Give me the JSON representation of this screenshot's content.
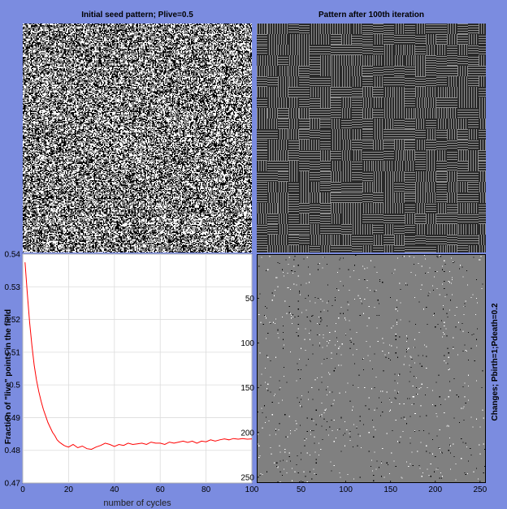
{
  "panels": {
    "seed": {
      "title": "Initial seed pattern; Plive=0.5",
      "grid_size": 256,
      "p_live": 0.5
    },
    "iteration": {
      "title": "Pattern after 100th iteration"
    },
    "changes": {
      "ylabel": "Changes; Pbirth=1;Pdeath=0.2"
    }
  },
  "chart_data": {
    "type": "line",
    "xlabel": "number of cycles",
    "ylabel": "Fraction of \"live\" points in the field",
    "xlim": [
      0,
      100
    ],
    "ylim": [
      0.47,
      0.54
    ],
    "xticks": [
      "0",
      "20",
      "40",
      "60",
      "80",
      "100"
    ],
    "yticks": [
      "0.47",
      "0.48",
      "0.49",
      "0.5",
      "0.51",
      "0.52",
      "0.53",
      "0.54"
    ],
    "grid": true,
    "series": [
      {
        "color": "#ff0000",
        "x": [
          1,
          2,
          3,
          4,
          5,
          6,
          7,
          8,
          9,
          10,
          11,
          12,
          13,
          14,
          15,
          16,
          17,
          18,
          19,
          20,
          22,
          24,
          26,
          28,
          30,
          32,
          34,
          36,
          38,
          40,
          42,
          44,
          46,
          48,
          50,
          52,
          54,
          56,
          58,
          60,
          62,
          64,
          66,
          68,
          70,
          72,
          74,
          76,
          78,
          80,
          82,
          84,
          86,
          88,
          90,
          92,
          94,
          96,
          98,
          100
        ],
        "y": [
          0.5375,
          0.528,
          0.519,
          0.512,
          0.506,
          0.5015,
          0.498,
          0.495,
          0.4925,
          0.4905,
          0.4885,
          0.487,
          0.4855,
          0.4845,
          0.4832,
          0.4825,
          0.482,
          0.4815,
          0.4812,
          0.481,
          0.4818,
          0.4808,
          0.4813,
          0.4805,
          0.4803,
          0.481,
          0.4815,
          0.4822,
          0.4818,
          0.4812,
          0.4818,
          0.4815,
          0.4822,
          0.4818,
          0.482,
          0.4822,
          0.4818,
          0.4825,
          0.4822,
          0.4822,
          0.4818,
          0.4825,
          0.4822,
          0.4825,
          0.4828,
          0.4824,
          0.4828,
          0.4822,
          0.4828,
          0.4826,
          0.4832,
          0.4828,
          0.4832,
          0.4835,
          0.4832,
          0.4836,
          0.4834,
          0.4836,
          0.4834,
          0.4835
        ]
      }
    ]
  },
  "changes_axes": {
    "xlim": [
      0.5,
      256.5
    ],
    "ylim": [
      0.5,
      256.5
    ],
    "xticks": [
      50,
      100,
      150,
      200,
      250
    ],
    "yticks": [
      50,
      100,
      150,
      200,
      250
    ]
  }
}
